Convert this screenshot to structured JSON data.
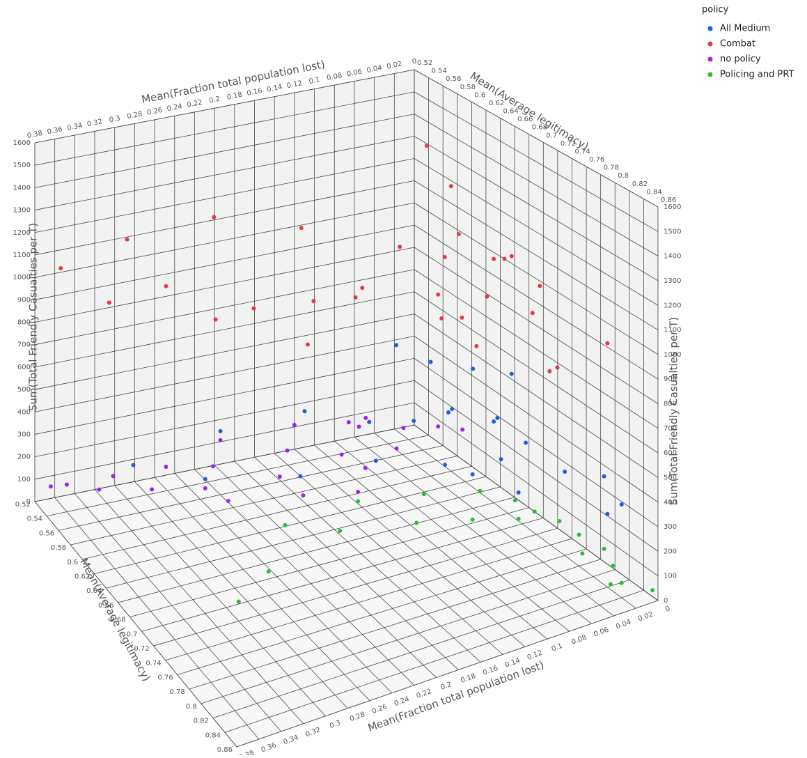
{
  "chart_data": {
    "type": "scatter3d",
    "x_label": "Mean(Fraction total population lost)",
    "y_label": "Mean(Average legitimacy)",
    "z_label": "Sum(Total Friendly Casualties per T)",
    "legend_title": "policy",
    "legend_position": "top-right",
    "xlim": [
      0,
      0.38
    ],
    "ylim": [
      0.52,
      0.86
    ],
    "zlim": [
      0,
      1600
    ],
    "xticks": [
      0,
      0.02,
      0.04,
      0.06,
      0.08,
      0.1,
      0.12,
      0.14,
      0.16,
      0.18,
      0.2,
      0.22,
      0.24,
      0.26,
      0.28,
      0.3,
      0.32,
      0.34,
      0.36,
      0.38
    ],
    "yticks": [
      0.52,
      0.54,
      0.56,
      0.58,
      0.6,
      0.62,
      0.64,
      0.66,
      0.68,
      0.7,
      0.72,
      0.74,
      0.76,
      0.78,
      0.8,
      0.82,
      0.84,
      0.86
    ],
    "zticks": [
      0,
      100,
      200,
      300,
      400,
      500,
      600,
      700,
      800,
      900,
      1000,
      1100,
      1200,
      1300,
      1400,
      1500,
      1600
    ],
    "grid": true,
    "series": [
      {
        "name": "All Medium",
        "color": "#1f5fd6",
        "x": [
          0.02,
          0.03,
          0.04,
          0.05,
          0.06,
          0.07,
          0.08,
          0.03,
          0.04,
          0.02,
          0.05,
          0.06,
          0.01,
          0.02,
          0.1,
          0.12,
          0.15,
          0.18,
          0.22,
          0.26,
          0.3,
          0.04,
          0.03,
          0.08,
          0.02
        ],
        "y": [
          0.66,
          0.68,
          0.7,
          0.64,
          0.66,
          0.62,
          0.68,
          0.72,
          0.6,
          0.76,
          0.74,
          0.58,
          0.8,
          0.84,
          0.6,
          0.64,
          0.58,
          0.62,
          0.56,
          0.6,
          0.55,
          0.66,
          0.7,
          0.72,
          0.82
        ],
        "z": [
          350,
          420,
          300,
          380,
          450,
          320,
          280,
          400,
          500,
          350,
          260,
          550,
          400,
          380,
          300,
          250,
          350,
          200,
          280,
          220,
          180,
          600,
          650,
          330,
          300
        ]
      },
      {
        "name": "Combat",
        "color": "#e8364a",
        "x": [
          0.02,
          0.03,
          0.04,
          0.05,
          0.06,
          0.03,
          0.04,
          0.02,
          0.05,
          0.07,
          0.08,
          0.1,
          0.12,
          0.14,
          0.16,
          0.18,
          0.2,
          0.22,
          0.25,
          0.28,
          0.3,
          0.33,
          0.36,
          0.04,
          0.06,
          0.03,
          0.05,
          0.09,
          0.11,
          0.02
        ],
        "y": [
          0.66,
          0.7,
          0.68,
          0.72,
          0.64,
          0.74,
          0.62,
          0.6,
          0.76,
          0.66,
          0.7,
          0.58,
          0.62,
          0.56,
          0.6,
          0.64,
          0.58,
          0.55,
          0.6,
          0.57,
          0.54,
          0.56,
          0.53,
          0.78,
          0.8,
          0.58,
          0.68,
          0.72,
          0.66,
          0.82
        ],
        "z": [
          1050,
          1150,
          950,
          1200,
          900,
          1100,
          1000,
          1250,
          1050,
          850,
          1300,
          800,
          950,
          1100,
          700,
          1000,
          850,
          1200,
          900,
          1000,
          1150,
          950,
          1050,
          850,
          900,
          1400,
          750,
          1000,
          1200,
          1000
        ]
      },
      {
        "name": "no policy",
        "color": "#a020f0",
        "x": [
          0.08,
          0.1,
          0.12,
          0.14,
          0.16,
          0.18,
          0.2,
          0.22,
          0.24,
          0.26,
          0.28,
          0.3,
          0.32,
          0.34,
          0.36,
          0.37,
          0.06,
          0.05,
          0.09,
          0.11,
          0.13,
          0.15,
          0.19,
          0.25
        ],
        "y": [
          0.62,
          0.64,
          0.6,
          0.62,
          0.58,
          0.6,
          0.62,
          0.56,
          0.58,
          0.6,
          0.57,
          0.58,
          0.55,
          0.56,
          0.54,
          0.53,
          0.64,
          0.66,
          0.58,
          0.6,
          0.64,
          0.66,
          0.64,
          0.62
        ],
        "z": [
          300,
          280,
          320,
          250,
          300,
          260,
          220,
          240,
          200,
          180,
          210,
          160,
          150,
          140,
          120,
          90,
          330,
          350,
          260,
          290,
          230,
          200,
          180,
          170
        ]
      },
      {
        "name": "Policing and PRT",
        "color": "#2ebd2e",
        "x": [
          0.01,
          0.015,
          0.02,
          0.025,
          0.03,
          0.035,
          0.04,
          0.05,
          0.06,
          0.08,
          0.1,
          0.12,
          0.15,
          0.18,
          0.22,
          0.26,
          0.3,
          0.02,
          0.03,
          0.005
        ],
        "y": [
          0.8,
          0.82,
          0.78,
          0.76,
          0.8,
          0.74,
          0.72,
          0.74,
          0.7,
          0.72,
          0.68,
          0.7,
          0.66,
          0.68,
          0.66,
          0.7,
          0.72,
          0.84,
          0.84,
          0.86
        ],
        "z": [
          100,
          80,
          130,
          150,
          110,
          160,
          170,
          150,
          190,
          140,
          180,
          130,
          160,
          120,
          140,
          100,
          80,
          60,
          70,
          50
        ]
      }
    ]
  }
}
